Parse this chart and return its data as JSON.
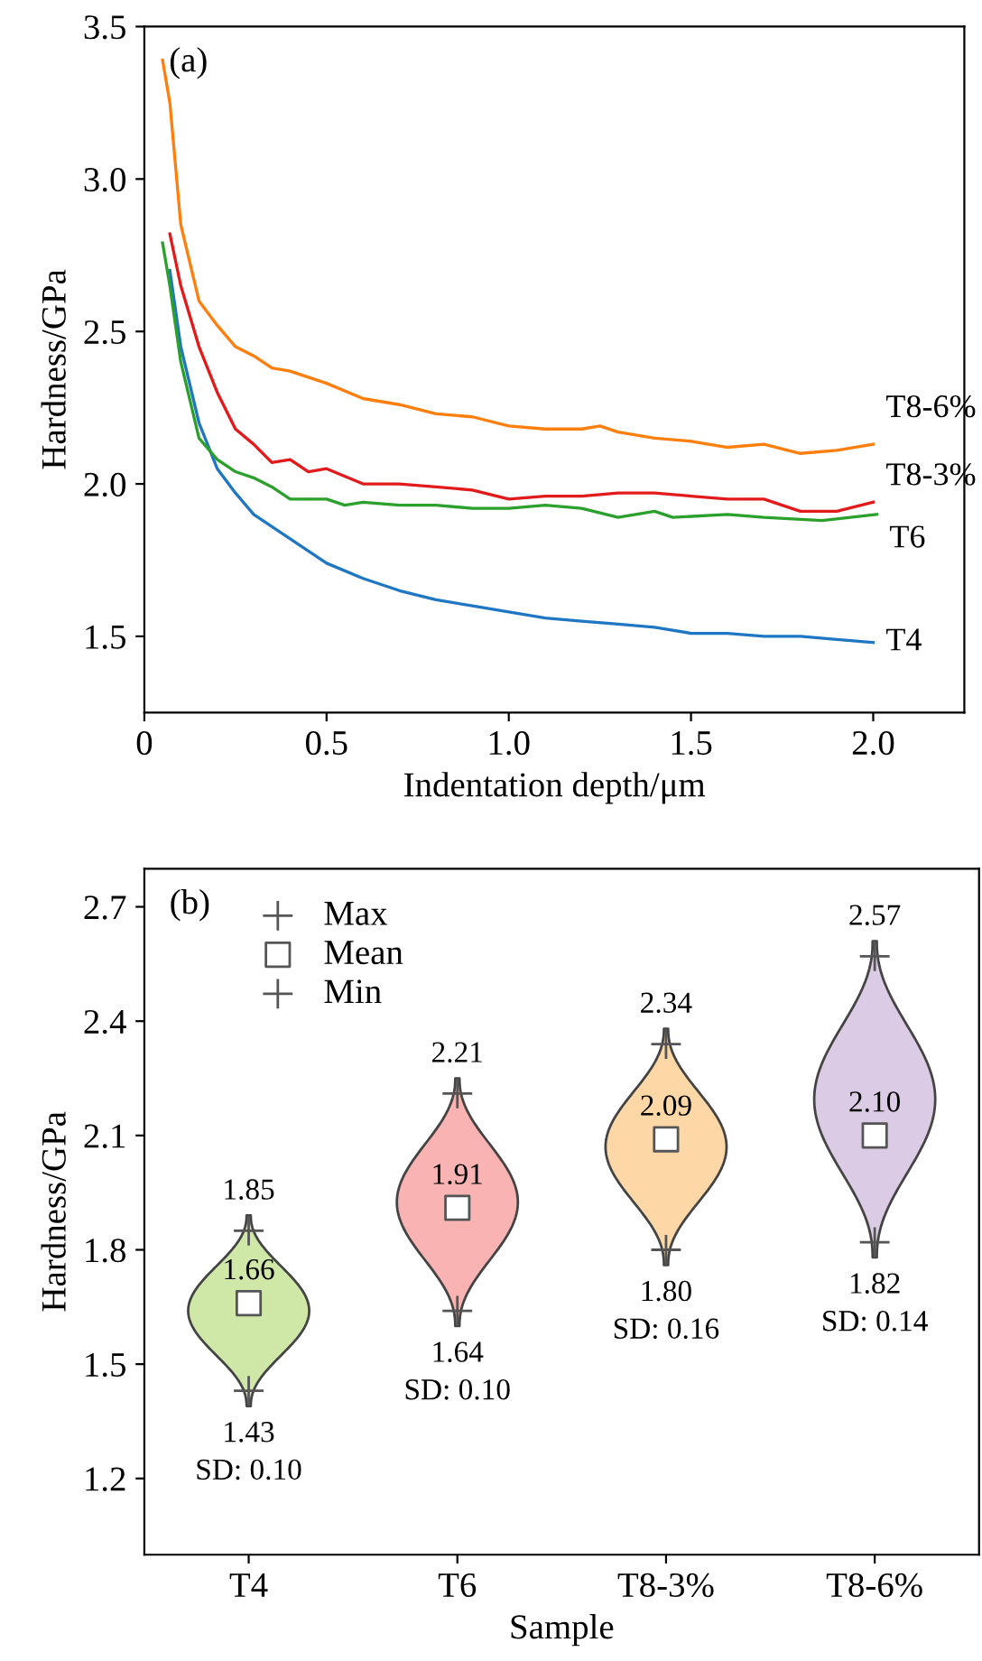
{
  "chart_data": [
    {
      "type": "line",
      "title": "(a)",
      "xlabel": "Indentation depth/μm",
      "ylabel": "Hardness/GPa",
      "xlim": [
        0,
        2.25
      ],
      "ylim": [
        1.25,
        3.5
      ],
      "xticks": [
        0,
        0.5,
        {
          "value": 1,
          "label": "1.0"
        },
        1.5,
        {
          "value": 2,
          "label": "2.0"
        }
      ],
      "yticks": [
        1.5,
        {
          "value": 2,
          "label": "2.0"
        },
        2.5,
        {
          "value": 3,
          "label": "3.0"
        },
        3.5
      ],
      "grid": false,
      "legend": false,
      "marker": "none",
      "line_style": "solid",
      "series": [
        {
          "name": "T4",
          "color": "#1f77c4",
          "x": [
            0.07,
            0.1,
            0.15,
            0.2,
            0.25,
            0.3,
            0.4,
            0.5,
            0.6,
            0.7,
            0.8,
            0.9,
            1.0,
            1.1,
            1.2,
            1.3,
            1.4,
            1.5,
            1.6,
            1.7,
            1.8,
            1.9,
            2.0
          ],
          "values": [
            2.7,
            2.45,
            2.2,
            2.05,
            1.97,
            1.9,
            1.82,
            1.74,
            1.69,
            1.65,
            1.62,
            1.6,
            1.58,
            1.56,
            1.55,
            1.54,
            1.53,
            1.51,
            1.51,
            1.5,
            1.5,
            1.49,
            1.48
          ]
        },
        {
          "name": "T6",
          "color": "#2ca02c",
          "x": [
            0.05,
            0.07,
            0.1,
            0.15,
            0.2,
            0.25,
            0.3,
            0.35,
            0.4,
            0.5,
            0.55,
            0.6,
            0.7,
            0.8,
            0.9,
            1.0,
            1.1,
            1.2,
            1.3,
            1.4,
            1.45,
            1.6,
            1.7,
            1.86,
            2.01
          ],
          "values": [
            2.79,
            2.65,
            2.4,
            2.15,
            2.08,
            2.04,
            2.02,
            1.99,
            1.95,
            1.95,
            1.93,
            1.94,
            1.93,
            1.93,
            1.92,
            1.92,
            1.93,
            1.92,
            1.89,
            1.91,
            1.89,
            1.9,
            1.89,
            1.88,
            1.9
          ]
        },
        {
          "name": "T8-3%",
          "color": "#e31a1c",
          "x": [
            0.07,
            0.1,
            0.15,
            0.2,
            0.25,
            0.3,
            0.35,
            0.4,
            0.45,
            0.5,
            0.6,
            0.7,
            0.8,
            0.9,
            1.0,
            1.1,
            1.2,
            1.3,
            1.4,
            1.5,
            1.6,
            1.7,
            1.8,
            1.9,
            2.0
          ],
          "values": [
            2.82,
            2.65,
            2.45,
            2.3,
            2.18,
            2.13,
            2.07,
            2.08,
            2.04,
            2.05,
            2.0,
            2.0,
            1.99,
            1.98,
            1.95,
            1.96,
            1.96,
            1.97,
            1.97,
            1.96,
            1.95,
            1.95,
            1.91,
            1.91,
            1.94
          ]
        },
        {
          "name": "T8-6%",
          "color": "#ff7f0e",
          "x": [
            0.05,
            0.07,
            0.1,
            0.15,
            0.2,
            0.25,
            0.3,
            0.35,
            0.4,
            0.5,
            0.6,
            0.7,
            0.8,
            0.9,
            1.0,
            1.1,
            1.2,
            1.25,
            1.3,
            1.4,
            1.5,
            1.6,
            1.7,
            1.8,
            1.9,
            2.0
          ],
          "values": [
            3.39,
            3.25,
            2.85,
            2.6,
            2.52,
            2.45,
            2.42,
            2.38,
            2.37,
            2.33,
            2.28,
            2.26,
            2.23,
            2.22,
            2.19,
            2.18,
            2.18,
            2.19,
            2.17,
            2.15,
            2.14,
            2.12,
            2.13,
            2.1,
            2.11,
            2.13
          ]
        }
      ]
    },
    {
      "type": "scatter",
      "title": "(b)",
      "xlabel": "Sample",
      "ylabel": "Hardness/GPa",
      "categories": [
        "T4",
        "T6",
        "T8-3%",
        "T8-6%"
      ],
      "ylim": [
        1.0,
        2.8
      ],
      "yticks": [
        1.2,
        1.5,
        1.8,
        2.1,
        2.4,
        2.7
      ],
      "grid": false,
      "legend": "top left",
      "colors": [
        "#cfe8a8",
        "#f9b3b3",
        "#fdd8a6",
        "#dccbe4"
      ],
      "series": [
        {
          "name": "Max",
          "color": "#555555",
          "marker": "cross",
          "values": [
            1.85,
            2.21,
            2.34,
            2.57
          ],
          "value_labels": [
            "1.85",
            "2.21",
            "2.34",
            "2.57"
          ]
        },
        {
          "name": "Mean",
          "color": "#555555",
          "marker": "square",
          "values": [
            1.66,
            1.91,
            2.09,
            2.1
          ],
          "value_labels": [
            "1.66",
            "1.91",
            "2.09",
            "2.10"
          ]
        },
        {
          "name": "Min",
          "color": "#555555",
          "marker": "cross",
          "values": [
            1.43,
            1.64,
            1.8,
            1.82
          ],
          "value_labels": [
            "1.43",
            "1.64",
            "1.80",
            "1.82"
          ]
        }
      ],
      "annotations": [
        {
          "text": "SD: 0.10",
          "x": "T4",
          "y": 1.43
        },
        {
          "text": "SD: 0.10",
          "x": "T6",
          "y": 1.64
        },
        {
          "text": "SD: 0.16",
          "x": "T8-3%",
          "y": 1.8
        },
        {
          "text": "SD: 0.14",
          "x": "T8-6%",
          "y": 1.82
        }
      ]
    }
  ]
}
